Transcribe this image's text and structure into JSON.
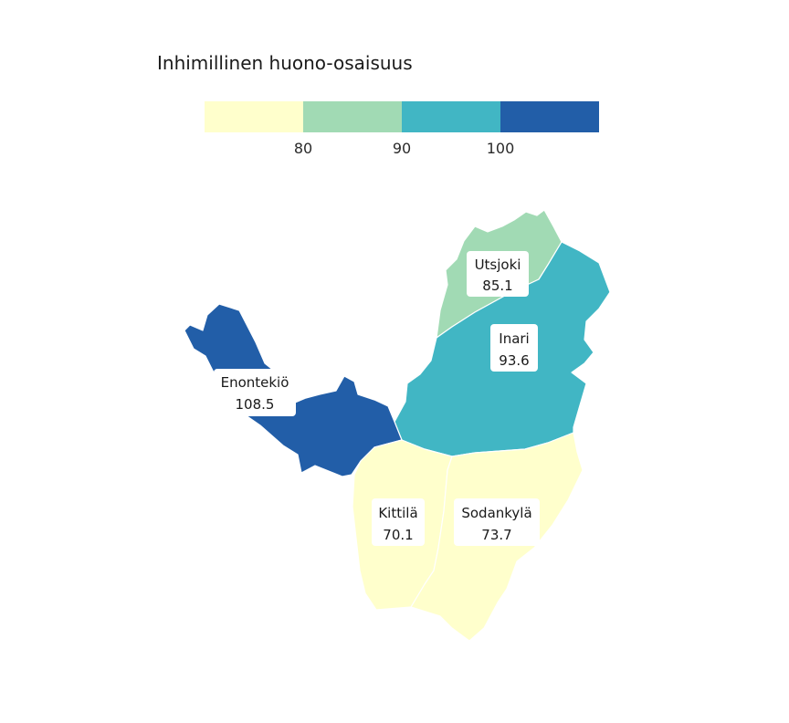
{
  "legend": {
    "title": "Inhimillinen huono-osaisuus",
    "colors": [
      "#ffffcc",
      "#a1dab4",
      "#41b6c4",
      "#225ea8"
    ],
    "ticks": [
      "80",
      "90",
      "100"
    ]
  },
  "regions": {
    "utsjoki": {
      "name": "Utsjoki",
      "value": "85.1",
      "color": "#a1dab4"
    },
    "inari": {
      "name": "Inari",
      "value": "93.6",
      "color": "#41b6c4"
    },
    "enontekio": {
      "name": "Enontekiö",
      "value": "108.5",
      "color": "#225ea8"
    },
    "kittila": {
      "name": "Kittilä",
      "value": "70.1",
      "color": "#ffffcc"
    },
    "sodankyla": {
      "name": "Sodankylä",
      "value": "73.7",
      "color": "#ffffcc"
    }
  }
}
